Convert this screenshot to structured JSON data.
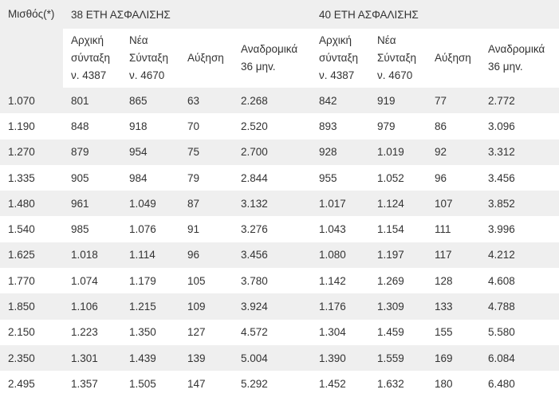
{
  "header": {
    "salary_label": "Μισθός(*)",
    "groups": [
      {
        "label": "38 ΕΤΗ ΑΣΦΑΛΙΣΗΣ"
      },
      {
        "label": "40 ΕΤΗ ΑΣΦΑΛΙΣΗΣ"
      }
    ],
    "subcolumns": [
      "Αρχική\nσύνταξη\nν. 4387",
      "Νέα\nΣύνταξη\nν. 4670",
      "Αύξηση",
      "Αναδρομικά\n36 μηv.",
      "Αρχική\nσύνταξη\nν. 4387",
      "Νέα\nΣύνταξη\nν. 4670",
      "Αύξηση",
      "Αναδρομικά\n36 μηv."
    ]
  },
  "rows": [
    [
      "1.070",
      "801",
      "865",
      "63",
      "2.268",
      "842",
      "919",
      "77",
      "2.772"
    ],
    [
      "1.190",
      "848",
      "918",
      "70",
      "2.520",
      "893",
      "979",
      "86",
      "3.096"
    ],
    [
      "1.270",
      "879",
      "954",
      "75",
      "2.700",
      "928",
      "1.019",
      "92",
      "3.312"
    ],
    [
      "1.335",
      "905",
      "984",
      "79",
      "2.844",
      "955",
      "1.052",
      "96",
      "3.456"
    ],
    [
      "1.480",
      "961",
      "1.049",
      "87",
      "3.132",
      "1.017",
      "1.124",
      "107",
      "3.852"
    ],
    [
      "1.540",
      "985",
      "1.076",
      "91",
      "3.276",
      "1.043",
      "1.154",
      "111",
      "3.996"
    ],
    [
      "1.625",
      "1.018",
      "1.114",
      "96",
      "3.456",
      "1.080",
      "1.197",
      "117",
      "4.212"
    ],
    [
      "1.770",
      "1.074",
      "1.179",
      "105",
      "3.780",
      "1.142",
      "1.269",
      "128",
      "4.608"
    ],
    [
      "1.850",
      "1.106",
      "1.215",
      "109",
      "3.924",
      "1.176",
      "1.309",
      "133",
      "4.788"
    ],
    [
      "2.150",
      "1.223",
      "1.350",
      "127",
      "4.572",
      "1.304",
      "1.459",
      "155",
      "5.580"
    ],
    [
      "2.350",
      "1.301",
      "1.439",
      "139",
      "5.004",
      "1.390",
      "1.559",
      "169",
      "6.084"
    ],
    [
      "2.495",
      "1.357",
      "1.505",
      "147",
      "5.292",
      "1.452",
      "1.632",
      "180",
      "6.480"
    ]
  ]
}
